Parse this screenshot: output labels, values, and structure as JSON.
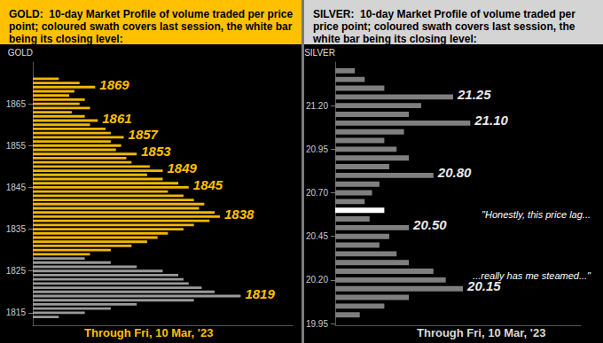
{
  "chart_data": [
    {
      "type": "bar",
      "orientation": "horizontal",
      "tick_labels": "y",
      "grid": false,
      "title": "GOLD:  10-day Market Profile of volume traded per price point; coloured swath covers last session, the white bar being its closing level:",
      "ylabel": "GOLD",
      "footnote": "Through Fri, 10 Mar, '23",
      "y": [
        1871,
        1870,
        1869,
        1868,
        1867,
        1866,
        1865,
        1864,
        1863,
        1862,
        1861,
        1860,
        1859,
        1858,
        1857,
        1856,
        1855,
        1854,
        1853,
        1852,
        1851,
        1850,
        1849,
        1848,
        1847,
        1846,
        1845,
        1844,
        1843,
        1842,
        1841,
        1840,
        1839,
        1838,
        1837,
        1836,
        1835,
        1834,
        1833,
        1832,
        1831,
        1830,
        1829,
        1828,
        1827,
        1826,
        1825,
        1824,
        1823,
        1822,
        1821,
        1820,
        1819,
        1818,
        1817,
        1816,
        1815,
        1814
      ],
      "values": [
        10,
        18,
        24,
        16,
        14,
        20,
        18,
        22,
        15,
        20,
        25,
        22,
        28,
        30,
        35,
        30,
        34,
        32,
        40,
        36,
        38,
        45,
        50,
        44,
        50,
        56,
        60,
        52,
        58,
        62,
        66,
        64,
        70,
        72,
        68,
        62,
        58,
        52,
        48,
        44,
        38,
        30,
        22,
        20,
        30,
        40,
        50,
        56,
        58,
        60,
        65,
        70,
        80,
        62,
        40,
        30,
        20,
        10
      ],
      "colors": [
        "#f2b705",
        "#f2b705",
        "#f2b705",
        "#f2b705",
        "#f2b705",
        "#f2b705",
        "#f2b705",
        "#f2b705",
        "#f2b705",
        "#f2b705",
        "#f2b705",
        "#f2b705",
        "#f2b705",
        "#f2b705",
        "#f2b705",
        "#f2b705",
        "#f2b705",
        "#f2b705",
        "#f2b705",
        "#f2b705",
        "#f2b705",
        "#f2b705",
        "#f2b705",
        "#f2b705",
        "#f2b705",
        "#f2b705",
        "#f2b705",
        "#f2b705",
        "#f2b705",
        "#f2b705",
        "#f2b705",
        "#f2b705",
        "#f2b705",
        "#f2b705",
        "#f2b705",
        "#f2b705",
        "#f2b705",
        "#f2b705",
        "#f2b705",
        "#f2b705",
        "#f2b705",
        "#f2b705",
        "#f2b705",
        "#9a9a9a",
        "#9a9a9a",
        "#9a9a9a",
        "#9a9a9a",
        "#9a9a9a",
        "#9a9a9a",
        "#9a9a9a",
        "#9a9a9a",
        "#9a9a9a",
        "#9a9a9a",
        "#9a9a9a",
        "#9a9a9a",
        "#9a9a9a",
        "#9a9a9a",
        "#9a9a9a"
      ],
      "xlim": [
        0,
        100
      ],
      "ylim": [
        1812,
        1875
      ],
      "yticks": [
        1815,
        1825,
        1835,
        1845,
        1855,
        1865
      ],
      "annotations": [
        {
          "value": 1869,
          "label": "1869"
        },
        {
          "value": 1861,
          "label": "1861"
        },
        {
          "value": 1857,
          "label": "1857"
        },
        {
          "value": 1853,
          "label": "1853"
        },
        {
          "value": 1849,
          "label": "1849"
        },
        {
          "value": 1845,
          "label": "1845"
        },
        {
          "value": 1838,
          "label": "1838"
        },
        {
          "value": 1819,
          "label": "1819"
        }
      ]
    },
    {
      "type": "bar",
      "orientation": "horizontal",
      "tick_labels": "y",
      "grid": false,
      "title": "SILVER:  10-day Market Profile of volume traded per price point; coloured swath covers last session, the white bar being its closing level:",
      "ylabel": "SILVER",
      "footnote": "Through Fri, 10 Mar, '23",
      "captions": [
        "\"Honestly, this price lag...",
        "...really has me steamed...\""
      ],
      "y": [
        21.4,
        21.35,
        21.3,
        21.25,
        21.2,
        21.15,
        21.1,
        21.05,
        21,
        20.95,
        20.9,
        20.85,
        20.8,
        20.75,
        20.7,
        20.65,
        20.6,
        20.55,
        20.5,
        20.45,
        20.4,
        20.35,
        20.3,
        20.25,
        20.2,
        20.15,
        20.1,
        20.05,
        20
      ],
      "values": [
        8,
        12,
        20,
        48,
        35,
        30,
        55,
        28,
        20,
        25,
        30,
        22,
        40,
        18,
        15,
        12,
        20,
        14,
        30,
        22,
        18,
        25,
        30,
        40,
        45,
        52,
        30,
        20,
        10
      ],
      "colors": [
        "#7f7f7f",
        "#7f7f7f",
        "#7f7f7f",
        "#7f7f7f",
        "#7f7f7f",
        "#7f7f7f",
        "#7f7f7f",
        "#7f7f7f",
        "#7f7f7f",
        "#7f7f7f",
        "#7f7f7f",
        "#7f7f7f",
        "#7f7f7f",
        "#7f7f7f",
        "#7f7f7f",
        "#7f7f7f",
        "#ffffff",
        "#7f7f7f",
        "#7f7f7f",
        "#7f7f7f",
        "#7f7f7f",
        "#7f7f7f",
        "#7f7f7f",
        "#7f7f7f",
        "#7f7f7f",
        "#7f7f7f",
        "#7f7f7f",
        "#7f7f7f",
        "#7f7f7f"
      ],
      "xlim": [
        0,
        100
      ],
      "ylim": [
        19.94,
        21.45
      ],
      "yticks": [
        19.95,
        {
          "value": 20.2,
          "label": "20.20"
        },
        20.45,
        {
          "value": 20.7,
          "label": "20.70"
        },
        20.95,
        {
          "value": 21.2,
          "label": "21.20"
        }
      ],
      "annotations": [
        {
          "value": 21.25,
          "label": "21.25"
        },
        {
          "value": 21.1,
          "label": "21.10"
        },
        {
          "value": 20.8,
          "label": "20.80"
        },
        {
          "value": 20.5,
          "label": "20.50"
        },
        {
          "value": 20.15,
          "label": "20.15"
        }
      ]
    }
  ]
}
